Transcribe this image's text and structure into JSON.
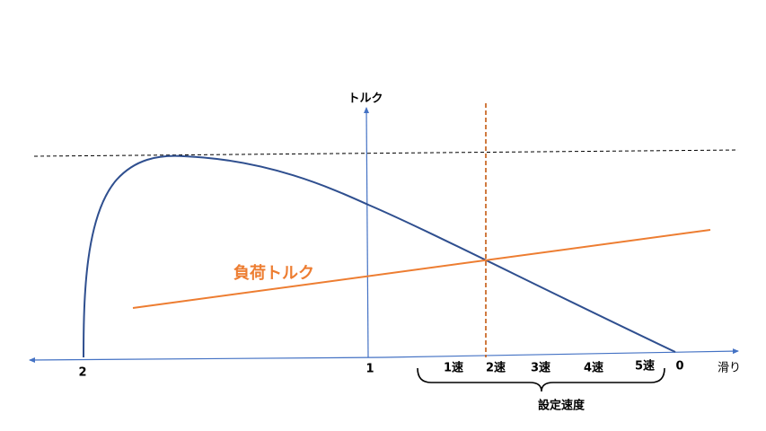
{
  "axis": {
    "y_label": "トルク",
    "x_label": "滑り",
    "x_ticks": [
      "2",
      "1",
      "0"
    ]
  },
  "load_torque": {
    "label": "負荷トルク"
  },
  "speeds": {
    "labels": [
      "1速",
      "2速",
      "3速",
      "4速",
      "5速"
    ],
    "group_label": "設定速度"
  }
}
